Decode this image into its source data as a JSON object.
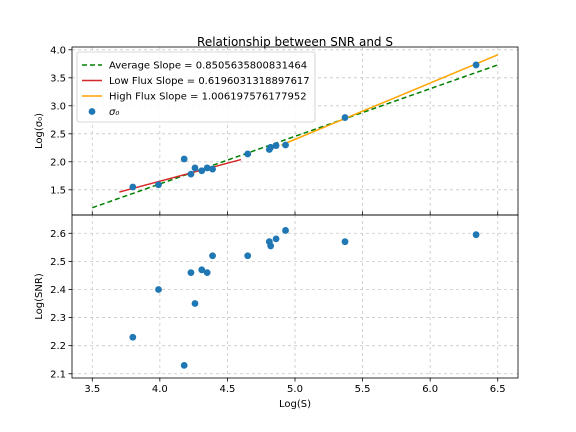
{
  "chart_data": {
    "type": "scatter",
    "title": "Relationship between SNR and S",
    "xlabel": "Log(S)",
    "grid": true,
    "legend_position": "top-left",
    "x_ticks": [
      "3.5",
      "4.0",
      "4.5",
      "5.0",
      "5.5",
      "6.0",
      "6.5"
    ],
    "xlim": [
      3.35,
      6.65
    ],
    "panels": [
      {
        "id": "top",
        "ylabel": "Log(σ₀)",
        "ylim": [
          1.05,
          4.05
        ],
        "y_ticks": [
          "1.5",
          "2.0",
          "2.5",
          "3.0",
          "3.5",
          "4.0"
        ],
        "scatter": {
          "name": "σ₀",
          "color": "#1f77b4",
          "points": [
            [
              3.8,
              1.55
            ],
            [
              3.99,
              1.59
            ],
            [
              4.18,
              2.05
            ],
            [
              4.23,
              1.78
            ],
            [
              4.26,
              1.89
            ],
            [
              4.31,
              1.84
            ],
            [
              4.35,
              1.89
            ],
            [
              4.39,
              1.87
            ],
            [
              4.65,
              2.14
            ],
            [
              4.81,
              2.22
            ],
            [
              4.82,
              2.26
            ],
            [
              4.86,
              2.29
            ],
            [
              4.93,
              2.3
            ],
            [
              5.37,
              2.79
            ],
            [
              6.34,
              3.73
            ]
          ]
        },
        "lines": [
          {
            "name": "Average Slope = 0.8505635800831464",
            "color": "#008000",
            "dash": true,
            "points": [
              [
                3.5,
                1.18
              ],
              [
                6.5,
                3.73
              ]
            ]
          },
          {
            "name": "Low Flux Slope = 0.6196031318897617",
            "color": "#d62728",
            "dash": false,
            "points": [
              [
                3.7,
                1.46
              ],
              [
                4.6,
                2.04
              ]
            ]
          },
          {
            "name": "High Flux Slope = 1.006197576177952",
            "color": "#ffa500",
            "dash": false,
            "points": [
              [
                4.9,
                2.3
              ],
              [
                6.5,
                3.91
              ]
            ]
          }
        ]
      },
      {
        "id": "bottom",
        "ylabel": "Log(SNR)",
        "ylim": [
          2.085,
          2.665
        ],
        "y_ticks": [
          "2.1",
          "2.2",
          "2.3",
          "2.4",
          "2.5",
          "2.6"
        ],
        "scatter": {
          "color": "#1f77b4",
          "points": [
            [
              3.8,
              2.23
            ],
            [
              3.99,
              2.4
            ],
            [
              4.18,
              2.13
            ],
            [
              4.23,
              2.46
            ],
            [
              4.26,
              2.35
            ],
            [
              4.31,
              2.47
            ],
            [
              4.35,
              2.46
            ],
            [
              4.39,
              2.52
            ],
            [
              4.65,
              2.52
            ],
            [
              4.81,
              2.57
            ],
            [
              4.82,
              2.555
            ],
            [
              4.86,
              2.58
            ],
            [
              4.93,
              2.61
            ],
            [
              5.37,
              2.57
            ],
            [
              6.34,
              2.595
            ]
          ]
        }
      }
    ]
  }
}
